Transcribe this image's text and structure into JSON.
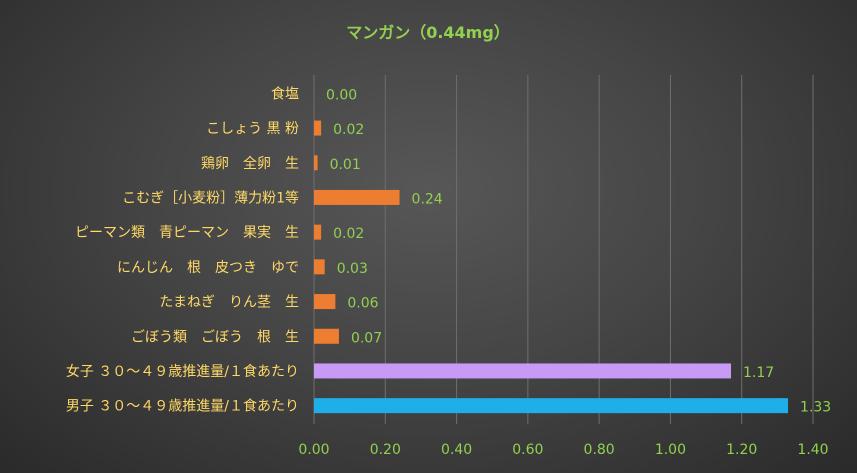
{
  "chart_data": {
    "type": "bar",
    "orientation": "horizontal",
    "title": "マンガン（0.44mg）",
    "categories": [
      "食塩",
      "こしょう 黒 粉",
      "鶏卵　全卵　生",
      "こむぎ［小麦粉］薄力粉1等",
      "ピーマン類　青ピーマン　果実　生",
      "にんじん　根　皮つき　ゆで",
      "たまねぎ　りん茎　生",
      "ごぼう類　ごぼう　根　生",
      "女子 ３０～４９歳推進量/１食あたり",
      "男子 ３０～４９歳推進量/１食あたり"
    ],
    "values": [
      0.0,
      0.02,
      0.01,
      0.24,
      0.02,
      0.03,
      0.06,
      0.07,
      1.17,
      1.33
    ],
    "value_labels": [
      "0.00",
      "0.02",
      "0.01",
      "0.24",
      "0.02",
      "0.03",
      "0.06",
      "0.07",
      "1.17",
      "1.33"
    ],
    "bar_colors": [
      "#ed7d31",
      "#ed7d31",
      "#ed7d31",
      "#ed7d31",
      "#ed7d31",
      "#ed7d31",
      "#ed7d31",
      "#ed7d31",
      "#c99af5",
      "#1eaee8"
    ],
    "xlim": [
      0,
      1.4
    ],
    "x_ticks": [
      "0.00",
      "0.20",
      "0.40",
      "0.60",
      "0.80",
      "1.00",
      "1.20",
      "1.40"
    ],
    "grid": true,
    "legend": "none",
    "colors": {
      "title": "#92d050",
      "category_label": "#ffd966",
      "value_label": "#92d050",
      "tick_label": "#92d050",
      "gridline": "#6e6e6e"
    }
  }
}
